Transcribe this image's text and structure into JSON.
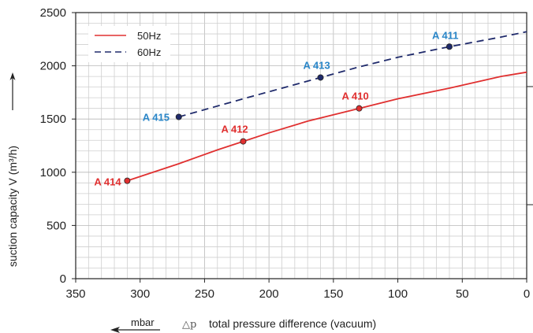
{
  "chart_data": {
    "type": "line",
    "xlabel": "total pressure difference (vacuum)",
    "xlabel_symbol": "△p",
    "xunit": "mbar",
    "ylabel": "suction capacity V (m³/h)",
    "xlim": [
      350,
      0
    ],
    "ylim": [
      0,
      2500
    ],
    "x_reversed": true,
    "xticks": [
      "350",
      "300",
      "250",
      "200",
      "150",
      "100",
      "50",
      "0"
    ],
    "yticks": [
      "0",
      "500",
      "1000",
      "1500",
      "2000",
      "2500"
    ],
    "grid": true,
    "legend_position": "top-left",
    "series": [
      {
        "name": "50Hz",
        "color": "#e03030",
        "style": "solid",
        "x": [
          310,
          270,
          240,
          220,
          200,
          170,
          130,
          100,
          60,
          20,
          0
        ],
        "y": [
          920,
          1080,
          1210,
          1290,
          1370,
          1480,
          1600,
          1690,
          1790,
          1900,
          1940
        ],
        "points": [
          {
            "label": "A 414",
            "x": 310,
            "y": 920
          },
          {
            "label": "A 412",
            "x": 220,
            "y": 1290
          },
          {
            "label": "A 410",
            "x": 130,
            "y": 1600
          }
        ]
      },
      {
        "name": "60Hz",
        "color": "#1f2a6b",
        "style": "dashed",
        "x": [
          270,
          220,
          160,
          130,
          100,
          60,
          20,
          0
        ],
        "y": [
          1520,
          1690,
          1890,
          1990,
          2080,
          2180,
          2270,
          2320
        ],
        "points": [
          {
            "label": "A 415",
            "x": 270,
            "y": 1520
          },
          {
            "label": "A 413",
            "x": 160,
            "y": 1890
          },
          {
            "label": "A 411",
            "x": 60,
            "y": 2180
          }
        ]
      }
    ],
    "point_label_colors": {
      "50Hz": "#e03030",
      "60Hz": "#2a86c8"
    }
  }
}
